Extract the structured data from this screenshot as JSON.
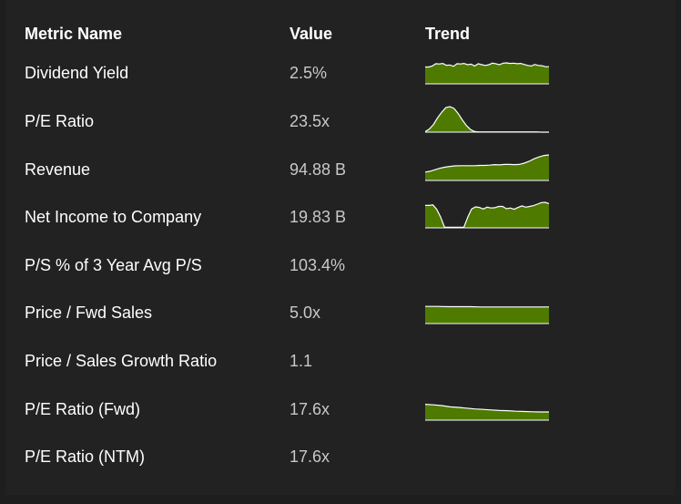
{
  "table": {
    "headers": {
      "metric": "Metric Name",
      "value": "Value",
      "trend": "Trend"
    },
    "rows": [
      {
        "metric": "Dividend Yield",
        "value": "2.5%"
      },
      {
        "metric": "P/E Ratio",
        "value": "23.5x"
      },
      {
        "metric": "Revenue",
        "value": "94.88 B"
      },
      {
        "metric": "Net Income to Company",
        "value": "19.83 B"
      },
      {
        "metric": "P/S % of 3 Year Avg P/S",
        "value": "103.4%"
      },
      {
        "metric": "Price / Fwd Sales",
        "value": "5.0x"
      },
      {
        "metric": "Price / Sales Growth Ratio",
        "value": "1.1"
      },
      {
        "metric": "P/E Ratio (Fwd)",
        "value": "17.6x"
      },
      {
        "metric": "P/E Ratio (NTM)",
        "value": "17.6x"
      }
    ]
  },
  "colors": {
    "sparkline_fill": "#4e7a00",
    "sparkline_line": "#ffffff",
    "background": "#222222"
  },
  "sparklines": [
    {
      "row": 0,
      "values": [
        0.66,
        0.66,
        0.7,
        0.79,
        0.78,
        0.8,
        0.73,
        0.74,
        0.69,
        0.79,
        0.78,
        0.8,
        0.75,
        0.77,
        0.7,
        0.79,
        0.75,
        0.72,
        0.75,
        0.81,
        0.79,
        0.75,
        0.81,
        0.82,
        0.8,
        0.81,
        0.79,
        0.8,
        0.76,
        0.72,
        0.7,
        0.76,
        0.72,
        0.71,
        0.67,
        0.67
      ]
    },
    {
      "row": 1,
      "values": [
        0.02,
        0.12,
        0.3,
        0.56,
        0.78,
        0.96,
        1.0,
        0.93,
        0.73,
        0.48,
        0.26,
        0.1,
        0.02,
        0.01,
        0.01,
        0.01,
        0.01,
        0.01,
        0.01,
        0.01,
        0.01,
        0.01,
        0.01,
        0.01,
        0.01,
        0.01,
        0.01,
        0.01,
        0.0,
        0.0,
        0.0
      ]
    },
    {
      "row": 2,
      "values": [
        0.33,
        0.36,
        0.42,
        0.48,
        0.52,
        0.55,
        0.57,
        0.58,
        0.58,
        0.58,
        0.58,
        0.59,
        0.59,
        0.6,
        0.62,
        0.61,
        0.63,
        0.63,
        0.62,
        0.63,
        0.68,
        0.75,
        0.85,
        0.92,
        0.98,
        1.0
      ]
    },
    {
      "row": 3,
      "values": [
        0.88,
        0.88,
        0.9,
        0.72,
        0.42,
        0.02,
        0.02,
        0.02,
        0.02,
        0.02,
        0.02,
        0.42,
        0.74,
        0.82,
        0.8,
        0.74,
        0.81,
        0.78,
        0.79,
        0.84,
        0.84,
        0.75,
        0.78,
        0.73,
        0.8,
        0.86,
        0.81,
        0.84,
        0.87,
        0.93,
        0.99,
        1.0,
        0.95
      ]
    },
    {
      "row": 5,
      "values": [
        0.67,
        0.67,
        0.66,
        0.66,
        0.66,
        0.65,
        0.65,
        0.65,
        0.65,
        0.65,
        0.65,
        0.65
      ]
    },
    {
      "row": 7,
      "values": [
        0.62,
        0.6,
        0.57,
        0.52,
        0.5,
        0.47,
        0.44,
        0.42,
        0.4,
        0.38,
        0.37,
        0.35,
        0.34,
        0.33,
        0.32,
        0.32
      ]
    }
  ]
}
